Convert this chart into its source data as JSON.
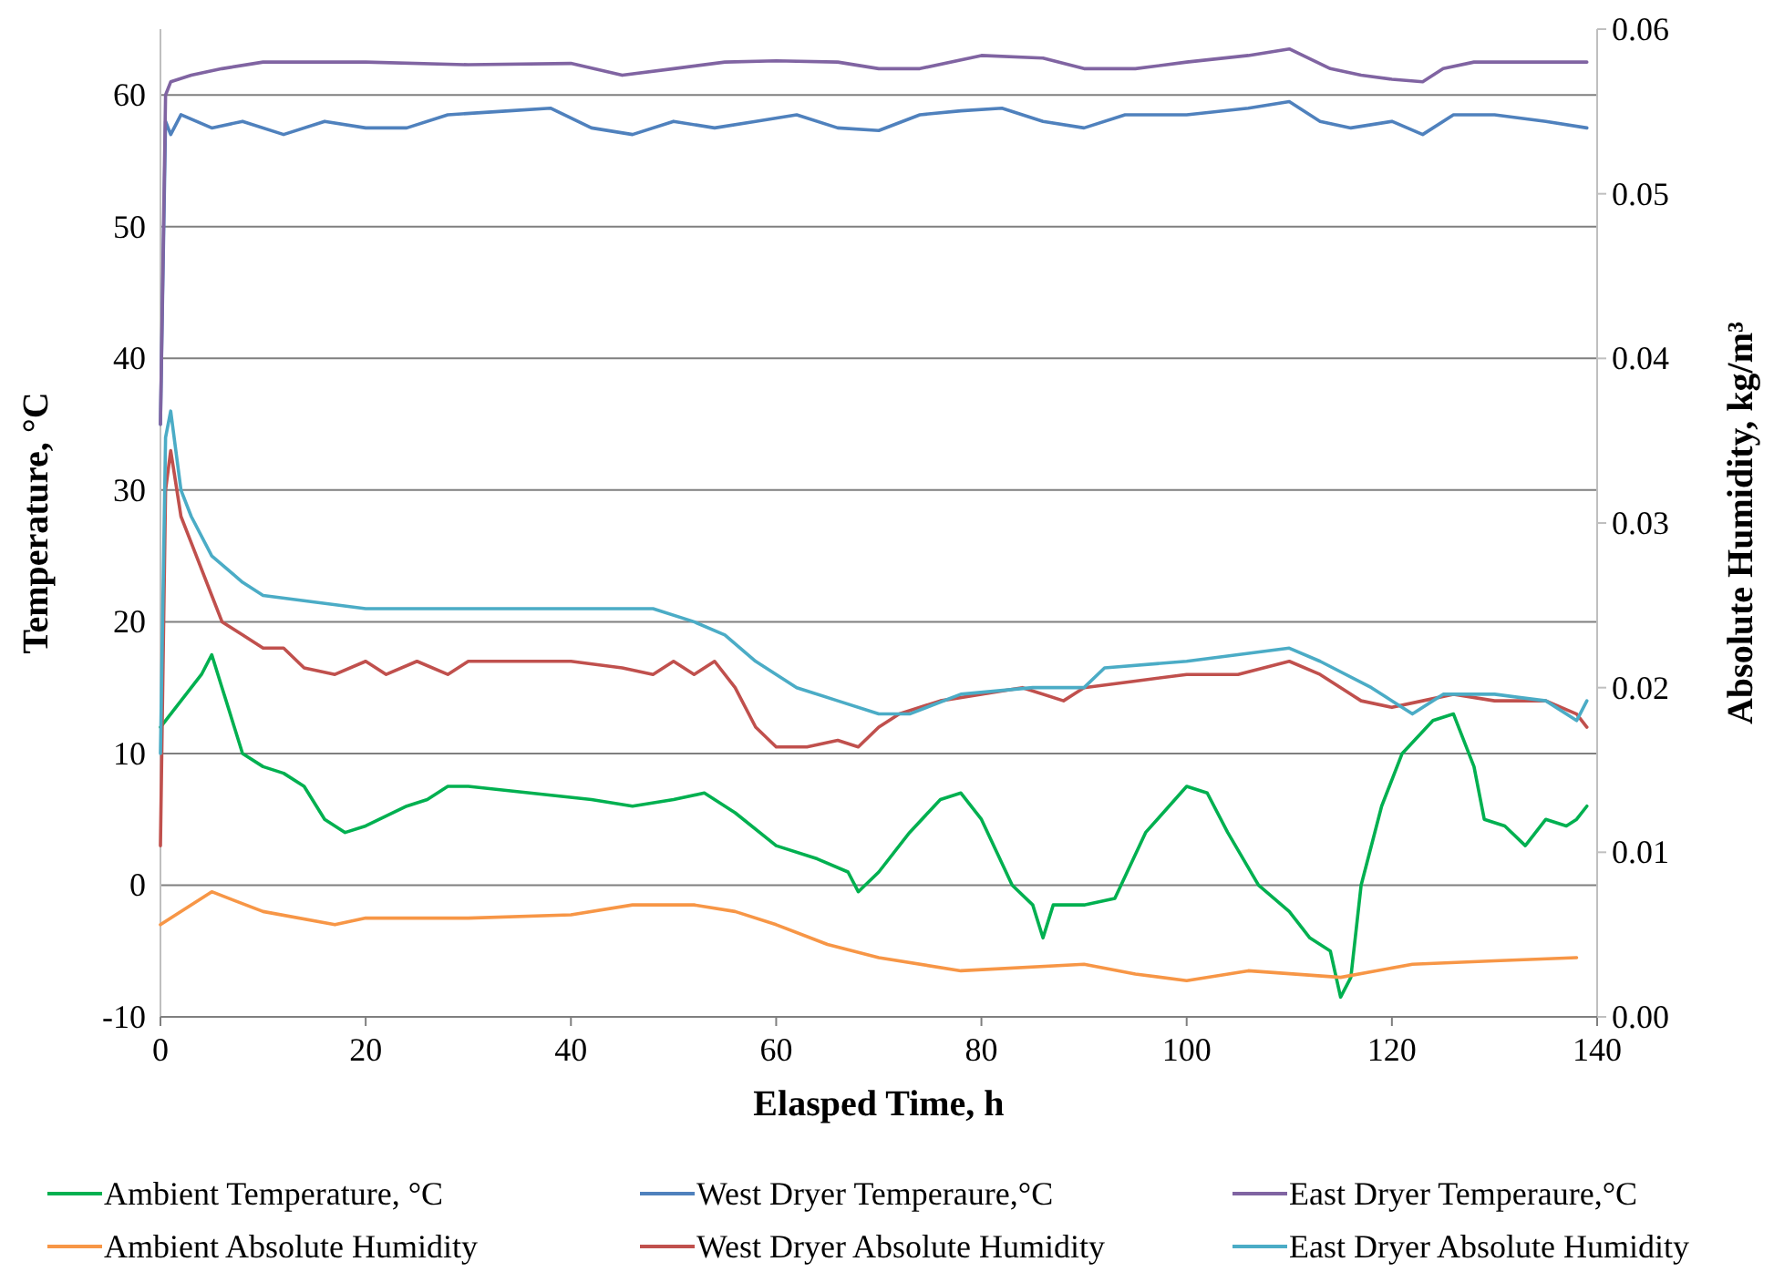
{
  "chart_data": {
    "type": "line",
    "xlabel": "Elasped Time, h",
    "ylabel": "Temperature, °C",
    "y2label": "Absolute Humidity, kg/m³",
    "xlim": [
      0,
      140
    ],
    "xticks": [
      0,
      20,
      40,
      60,
      80,
      100,
      120,
      140
    ],
    "ylim": [
      -10,
      65
    ],
    "yticks": [
      -10,
      0,
      10,
      20,
      30,
      40,
      50,
      60
    ],
    "y2lim": [
      0,
      0.06
    ],
    "y2ticks": [
      {
        "value": 0,
        "label": "0.00"
      },
      {
        "value": 0.01,
        "label": "0.01"
      },
      {
        "value": 0.02,
        "label": "0.02"
      },
      {
        "value": 0.03,
        "label": "0.03"
      },
      {
        "value": 0.04,
        "label": "0.04"
      },
      {
        "value": 0.05,
        "label": "0.05"
      },
      {
        "value": 0.06,
        "label": "0.06"
      }
    ],
    "grid": "y",
    "legend": "bottom",
    "series": [
      {
        "name": "Ambient Temperature, °C",
        "color": "#00b050",
        "x": [
          0,
          2,
          4,
          5,
          6,
          8,
          10,
          12,
          14,
          16,
          18,
          20,
          24,
          26,
          28,
          30,
          36,
          42,
          46,
          50,
          53,
          56,
          60,
          64,
          67,
          68,
          70,
          73,
          76,
          78,
          80,
          83,
          85,
          86,
          87,
          90,
          93,
          96,
          100,
          102,
          104,
          107,
          110,
          112,
          114,
          115,
          116,
          117,
          119,
          121,
          124,
          126,
          128,
          129,
          131,
          133,
          135,
          137,
          138,
          139
        ],
        "values": [
          12,
          14,
          16,
          17.5,
          15,
          10,
          9,
          8.5,
          7.5,
          5,
          4,
          4.5,
          6,
          6.5,
          7.5,
          7.5,
          7,
          6.5,
          6,
          6.5,
          7,
          5.5,
          3,
          2,
          1,
          -0.5,
          1,
          4,
          6.5,
          7,
          5,
          0,
          -1.5,
          -4,
          -1.5,
          -1.5,
          -1,
          4,
          7.5,
          7,
          4,
          0,
          -2,
          -4,
          -5,
          -8.5,
          -7,
          0,
          6,
          10,
          12.5,
          13,
          9,
          5,
          4.5,
          3,
          5,
          4.5,
          5,
          6
        ]
      },
      {
        "name": "West Dryer Temperaure,°C",
        "color": "#4f81bd",
        "x": [
          0,
          0.5,
          1,
          2,
          5,
          8,
          12,
          16,
          20,
          24,
          28,
          34,
          38,
          42,
          46,
          50,
          54,
          58,
          62,
          66,
          70,
          74,
          78,
          82,
          86,
          90,
          94,
          100,
          106,
          110,
          113,
          116,
          120,
          123,
          126,
          130,
          135,
          139
        ],
        "values": [
          35,
          58,
          57,
          58.5,
          57.5,
          58,
          57,
          58,
          57.5,
          57.5,
          58.5,
          58.8,
          59,
          57.5,
          57,
          58,
          57.5,
          58,
          58.5,
          57.5,
          57.3,
          58.5,
          58.8,
          59,
          58,
          57.5,
          58.5,
          58.5,
          59,
          59.5,
          58,
          57.5,
          58,
          57,
          58.5,
          58.5,
          58,
          57.5
        ]
      },
      {
        "name": "East Dryer Temperaure,°C",
        "color": "#8064a2",
        "x": [
          0,
          0.5,
          1,
          3,
          6,
          10,
          20,
          30,
          40,
          45,
          50,
          55,
          60,
          66,
          70,
          74,
          80,
          86,
          90,
          95,
          100,
          106,
          110,
          114,
          117,
          120,
          123,
          125,
          128,
          132,
          136,
          139
        ],
        "values": [
          35,
          60,
          61,
          61.5,
          62,
          62.5,
          62.5,
          62.3,
          62.4,
          61.5,
          62,
          62.5,
          62.6,
          62.5,
          62,
          62,
          63,
          62.8,
          62,
          62,
          62.5,
          63,
          63.5,
          62,
          61.5,
          61.2,
          61,
          62,
          62.5,
          62.5,
          62.5,
          62.5
        ]
      },
      {
        "name": "Ambient Absolute Humidity",
        "color": "#f79646",
        "axis": "y2",
        "x": [
          0,
          5,
          10,
          17,
          20,
          30,
          40,
          46,
          52,
          56,
          60,
          65,
          70,
          78,
          90,
          95,
          100,
          106,
          115,
          122,
          130,
          138
        ],
        "values": [
          0.0056,
          0.0076,
          0.0064,
          0.0056,
          0.006,
          0.006,
          0.0062,
          0.0068,
          0.0068,
          0.0064,
          0.0056,
          0.0044,
          0.0036,
          0.0028,
          0.0032,
          0.0026,
          0.0022,
          0.0028,
          0.0024,
          0.0032,
          0.0034,
          0.0036
        ]
      },
      {
        "name": "West Dryer Absolute Humidity",
        "color": "#c0504d",
        "axis": "y2",
        "x": [
          0,
          0.5,
          1,
          2,
          3,
          5,
          6,
          8,
          10,
          12,
          14,
          17,
          20,
          22,
          25,
          28,
          30,
          36,
          40,
          45,
          48,
          50,
          52,
          54,
          56,
          58,
          60,
          63,
          66,
          68,
          70,
          72,
          76,
          80,
          84,
          88,
          90,
          95,
          100,
          105,
          110,
          113,
          117,
          120,
          123,
          126,
          130,
          135,
          138,
          139
        ],
        "values": [
          0.0104,
          0.032,
          0.0344,
          0.0304,
          0.0288,
          0.0256,
          0.024,
          0.0232,
          0.0224,
          0.0224,
          0.0212,
          0.0208,
          0.0216,
          0.0208,
          0.0216,
          0.0208,
          0.0216,
          0.0216,
          0.0216,
          0.0212,
          0.0208,
          0.0216,
          0.0208,
          0.0216,
          0.02,
          0.0176,
          0.0164,
          0.0164,
          0.0168,
          0.0164,
          0.0176,
          0.0184,
          0.0192,
          0.0196,
          0.02,
          0.0192,
          0.02,
          0.0204,
          0.0208,
          0.0208,
          0.0216,
          0.0208,
          0.0192,
          0.0188,
          0.0192,
          0.0196,
          0.0192,
          0.0192,
          0.0184,
          0.0176
        ]
      },
      {
        "name": "East Dryer Absolute Humidity",
        "color": "#4bacc6",
        "axis": "y2",
        "x": [
          0,
          0.5,
          1,
          2,
          3,
          5,
          8,
          10,
          15,
          20,
          30,
          40,
          48,
          52,
          55,
          58,
          62,
          66,
          70,
          73,
          78,
          85,
          90,
          92,
          100,
          105,
          110,
          113,
          118,
          122,
          125,
          130,
          135,
          138,
          139
        ],
        "values": [
          0.016,
          0.0352,
          0.0368,
          0.032,
          0.0304,
          0.028,
          0.0264,
          0.0256,
          0.0252,
          0.0248,
          0.0248,
          0.0248,
          0.0248,
          0.024,
          0.0232,
          0.0216,
          0.02,
          0.0192,
          0.0184,
          0.0184,
          0.0196,
          0.02,
          0.02,
          0.0212,
          0.0216,
          0.022,
          0.0224,
          0.0216,
          0.02,
          0.0184,
          0.0196,
          0.0196,
          0.0192,
          0.018,
          0.0192
        ]
      }
    ]
  }
}
